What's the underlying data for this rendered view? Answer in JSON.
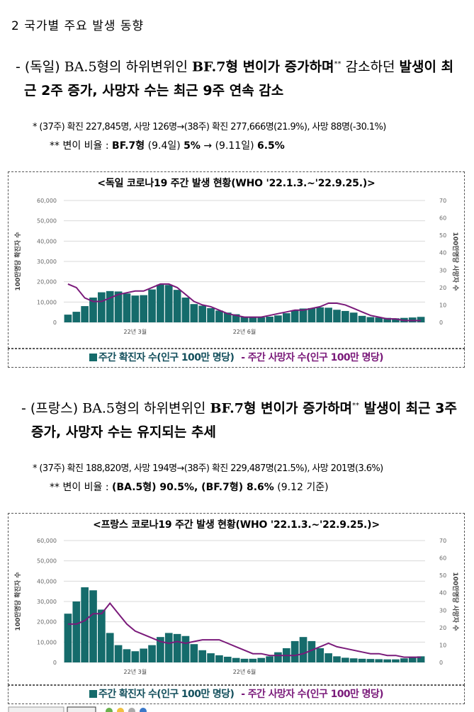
{
  "section_title": "2  국가별 주요 발생 동향",
  "germany": {
    "line1_prefix": "- (독일) ",
    "line1_ba": "BA.5형의 하위변위인 ",
    "line1_bold": "BF.7형 변이가 증가하며",
    "line1_sup": "**",
    "line1_rest": " 감소하던 ",
    "line1_bold2": "발생이 최",
    "line2_bold": "근 2주 증가, 사망자 수는 최근 9주 연속 감소",
    "note1": "* (37주) 확진 227,845명, 사망 126명→(38주) 확진 277,666명(21.9%), 사망 88명(-30.1%)",
    "note2_prefix": "** 변이 비율 : ",
    "note2_bold": "BF.7형",
    "note2_mid": " (9.4일) ",
    "note2_val1": "5%",
    "note2_arrow": " → (9.11일) ",
    "note2_val2": "6.5%"
  },
  "france": {
    "line1_prefix": "- (프랑스) ",
    "line1_ba": "BA.5형의 하위변위인 ",
    "line1_bold": "BF.7형 변이가 증가하며",
    "line1_sup": "**",
    "line1_bold2": " 발생이 최근 3주",
    "line2_bold": "증가, 사망자 수는 유지되는 추세",
    "note1": "* (37주) 확진 188,820명, 사망 194명→(38주) 확진 229,487명(21.5%), 사망 201명(3.6%)",
    "note2_prefix": "** 변이 비율 : ",
    "note2_bold": "(BA.5형) 90.5%, (BF.7형) 8.6%",
    "note2_rest": " (9.12 기준)"
  },
  "legend": {
    "cases": "주간 확진자 수(인구 100만 명당)",
    "deaths": "- 주간 사망자 수(인구 100만 명당)"
  },
  "colors": {
    "bar": "#156b6b",
    "line": "#7a1a7a",
    "grid": "#d9d9d9"
  },
  "chart_data": [
    {
      "type": "bar",
      "title": "<독일 코로나19 주간 발생 현황(WHO '22.1.3.~'22.9.25.)>",
      "ylabel": "100만명당 확진자 수",
      "y2label": "100만명당 사망자 수",
      "ylim": [
        0,
        60000
      ],
      "y2lim": [
        0,
        70
      ],
      "yticks": [
        "0",
        "10,000",
        "20,000",
        "30,000",
        "40,000",
        "50,000",
        "60,000"
      ],
      "y2ticks": [
        "0",
        "10",
        "20",
        "30",
        "40",
        "50",
        "60",
        "70"
      ],
      "xtick_labels": [
        {
          "index": 8,
          "label": "22년 3월"
        },
        {
          "index": 21,
          "label": "22년 6월"
        }
      ],
      "series": [
        {
          "name": "주간 확진자 수(인구 100만 명당)",
          "kind": "bar",
          "values": [
            3800,
            5200,
            8000,
            12200,
            14800,
            15400,
            15200,
            14200,
            13200,
            13400,
            16200,
            18600,
            18400,
            16000,
            12200,
            9000,
            8200,
            7000,
            5800,
            4800,
            4000,
            2800,
            2400,
            2500,
            2800,
            3400,
            4500,
            5800,
            6800,
            7000,
            7400,
            7200,
            6200,
            5600,
            4800,
            3200,
            2600,
            2400,
            2200,
            2000,
            2200,
            2400,
            2700
          ]
        },
        {
          "name": "주간 사망자 수(인구 100만 명당)",
          "kind": "line",
          "values": [
            22,
            20,
            14,
            12,
            12,
            14,
            16,
            17,
            18,
            18,
            20,
            22,
            22,
            20,
            16,
            12,
            10,
            9,
            7,
            5,
            4,
            3,
            3,
            3,
            4,
            5,
            6,
            7,
            7,
            8,
            9,
            11,
            11,
            10,
            8,
            6,
            4,
            3,
            2,
            2,
            1,
            1,
            1
          ]
        }
      ]
    },
    {
      "type": "bar",
      "title": "<프랑스 코로나19 주간 발생 현황(WHO '22.1.3.~'22.9.25.)>",
      "ylabel": "100만명당 확진자 수",
      "y2label": "100만명당 사망자 수",
      "ylim": [
        0,
        60000
      ],
      "y2lim": [
        0,
        70
      ],
      "yticks": [
        "0",
        "10,000",
        "20,000",
        "30,000",
        "40,000",
        "50,000",
        "60,000"
      ],
      "y2ticks": [
        "0",
        "10",
        "20",
        "30",
        "40",
        "50",
        "60",
        "70"
      ],
      "xtick_labels": [
        {
          "index": 8,
          "label": "22년 3월"
        },
        {
          "index": 21,
          "label": "22년 6월"
        }
      ],
      "series": [
        {
          "name": "주간 확진자 수(인구 100만 명당)",
          "kind": "bar",
          "values": [
            24000,
            30000,
            37000,
            35500,
            26000,
            14500,
            8500,
            6500,
            5500,
            6800,
            8500,
            12500,
            14500,
            14000,
            13000,
            9000,
            6000,
            4500,
            3500,
            2800,
            2200,
            1800,
            1800,
            2200,
            3000,
            5000,
            7000,
            10500,
            12500,
            10500,
            7000,
            4500,
            3000,
            2300,
            2000,
            1800,
            1700,
            1600,
            1500,
            1500,
            2000,
            2500,
            3000
          ]
        },
        {
          "name": "주간 사망자 수(인구 100만 명당)",
          "kind": "line",
          "values": [
            22,
            22,
            24,
            28,
            28,
            34,
            28,
            22,
            18,
            16,
            14,
            12,
            11,
            12,
            11,
            12,
            13,
            13,
            13,
            11,
            9,
            7,
            5,
            5,
            4,
            4,
            4,
            4,
            5,
            7,
            9,
            11,
            9,
            8,
            7,
            6,
            5,
            5,
            4,
            4,
            3,
            3,
            3
          ]
        }
      ]
    }
  ]
}
